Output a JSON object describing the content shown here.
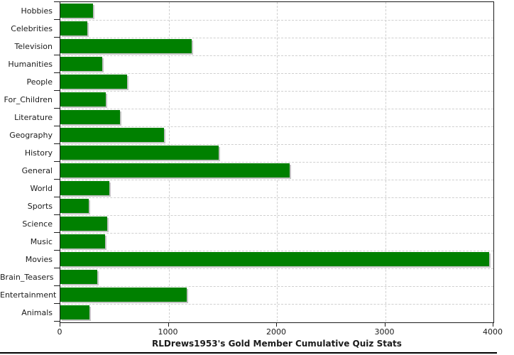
{
  "chart_data": {
    "type": "bar",
    "orientation": "horizontal",
    "title": "RLDrews1953's Gold Member Cumulative Quiz Stats",
    "categories": [
      "Hobbies",
      "Celebrities",
      "Television",
      "Humanities",
      "People",
      "For_Children",
      "Literature",
      "Geography",
      "History",
      "General",
      "World",
      "Sports",
      "Science",
      "Music",
      "Movies",
      "Brain_Teasers",
      "Entertainment",
      "Animals"
    ],
    "values": [
      300,
      250,
      1210,
      385,
      615,
      420,
      550,
      955,
      1460,
      2120,
      455,
      265,
      435,
      410,
      3960,
      340,
      1170,
      270
    ],
    "xlabel": "",
    "ylabel": "",
    "xlim": [
      0,
      4000
    ],
    "xticks": [
      0,
      1000,
      2000,
      3000,
      4000
    ],
    "grid": "dashed; vertical lines at x ticks, horizontal lines at category boundaries",
    "legend": "none",
    "colors": {
      "bar": "#008000",
      "bar_shadow": "#c4c4c4",
      "grid": "#cfcfcf",
      "axis": "#1b1b1b",
      "text": "#1b1b1b",
      "background": "#ffffff",
      "bottom_border": "#000000"
    }
  }
}
